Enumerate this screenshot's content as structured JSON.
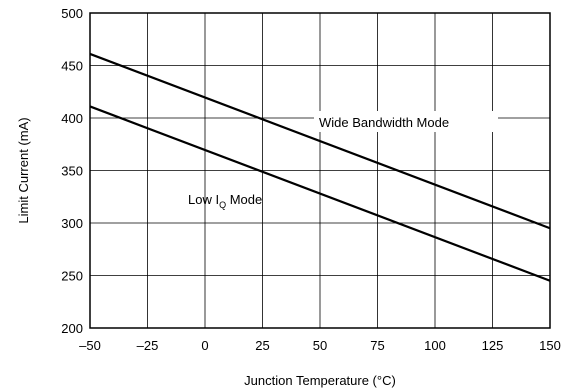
{
  "chart_data": {
    "type": "line",
    "title": "",
    "xlabel": "Junction Temperature (°C)",
    "ylabel": "Limit Current (mA)",
    "xlim": [
      -50,
      150
    ],
    "ylim": [
      200,
      500
    ],
    "xticks": [
      "–50",
      "–25",
      "0",
      "25",
      "50",
      "75",
      "100",
      "125",
      "150"
    ],
    "xtick_values": [
      -50,
      -25,
      0,
      25,
      50,
      75,
      100,
      125,
      150
    ],
    "yticks": [
      "200",
      "250",
      "300",
      "350",
      "400",
      "450",
      "500"
    ],
    "ytick_values": [
      200,
      250,
      300,
      350,
      400,
      450,
      500
    ],
    "grid": true,
    "legend": "none",
    "series": [
      {
        "name": "Wide Bandwidth Mode",
        "x": [
          -50,
          150
        ],
        "y": [
          461,
          295
        ],
        "color": "#000000"
      },
      {
        "name": "Low IQ Mode",
        "x": [
          -50,
          150
        ],
        "y": [
          411,
          245
        ],
        "color": "#000000"
      }
    ],
    "annotations": {
      "wide": "Wide Bandwidth Mode",
      "low_main": "Low I",
      "low_sub": "Q",
      "low_tail": " Mode"
    }
  }
}
